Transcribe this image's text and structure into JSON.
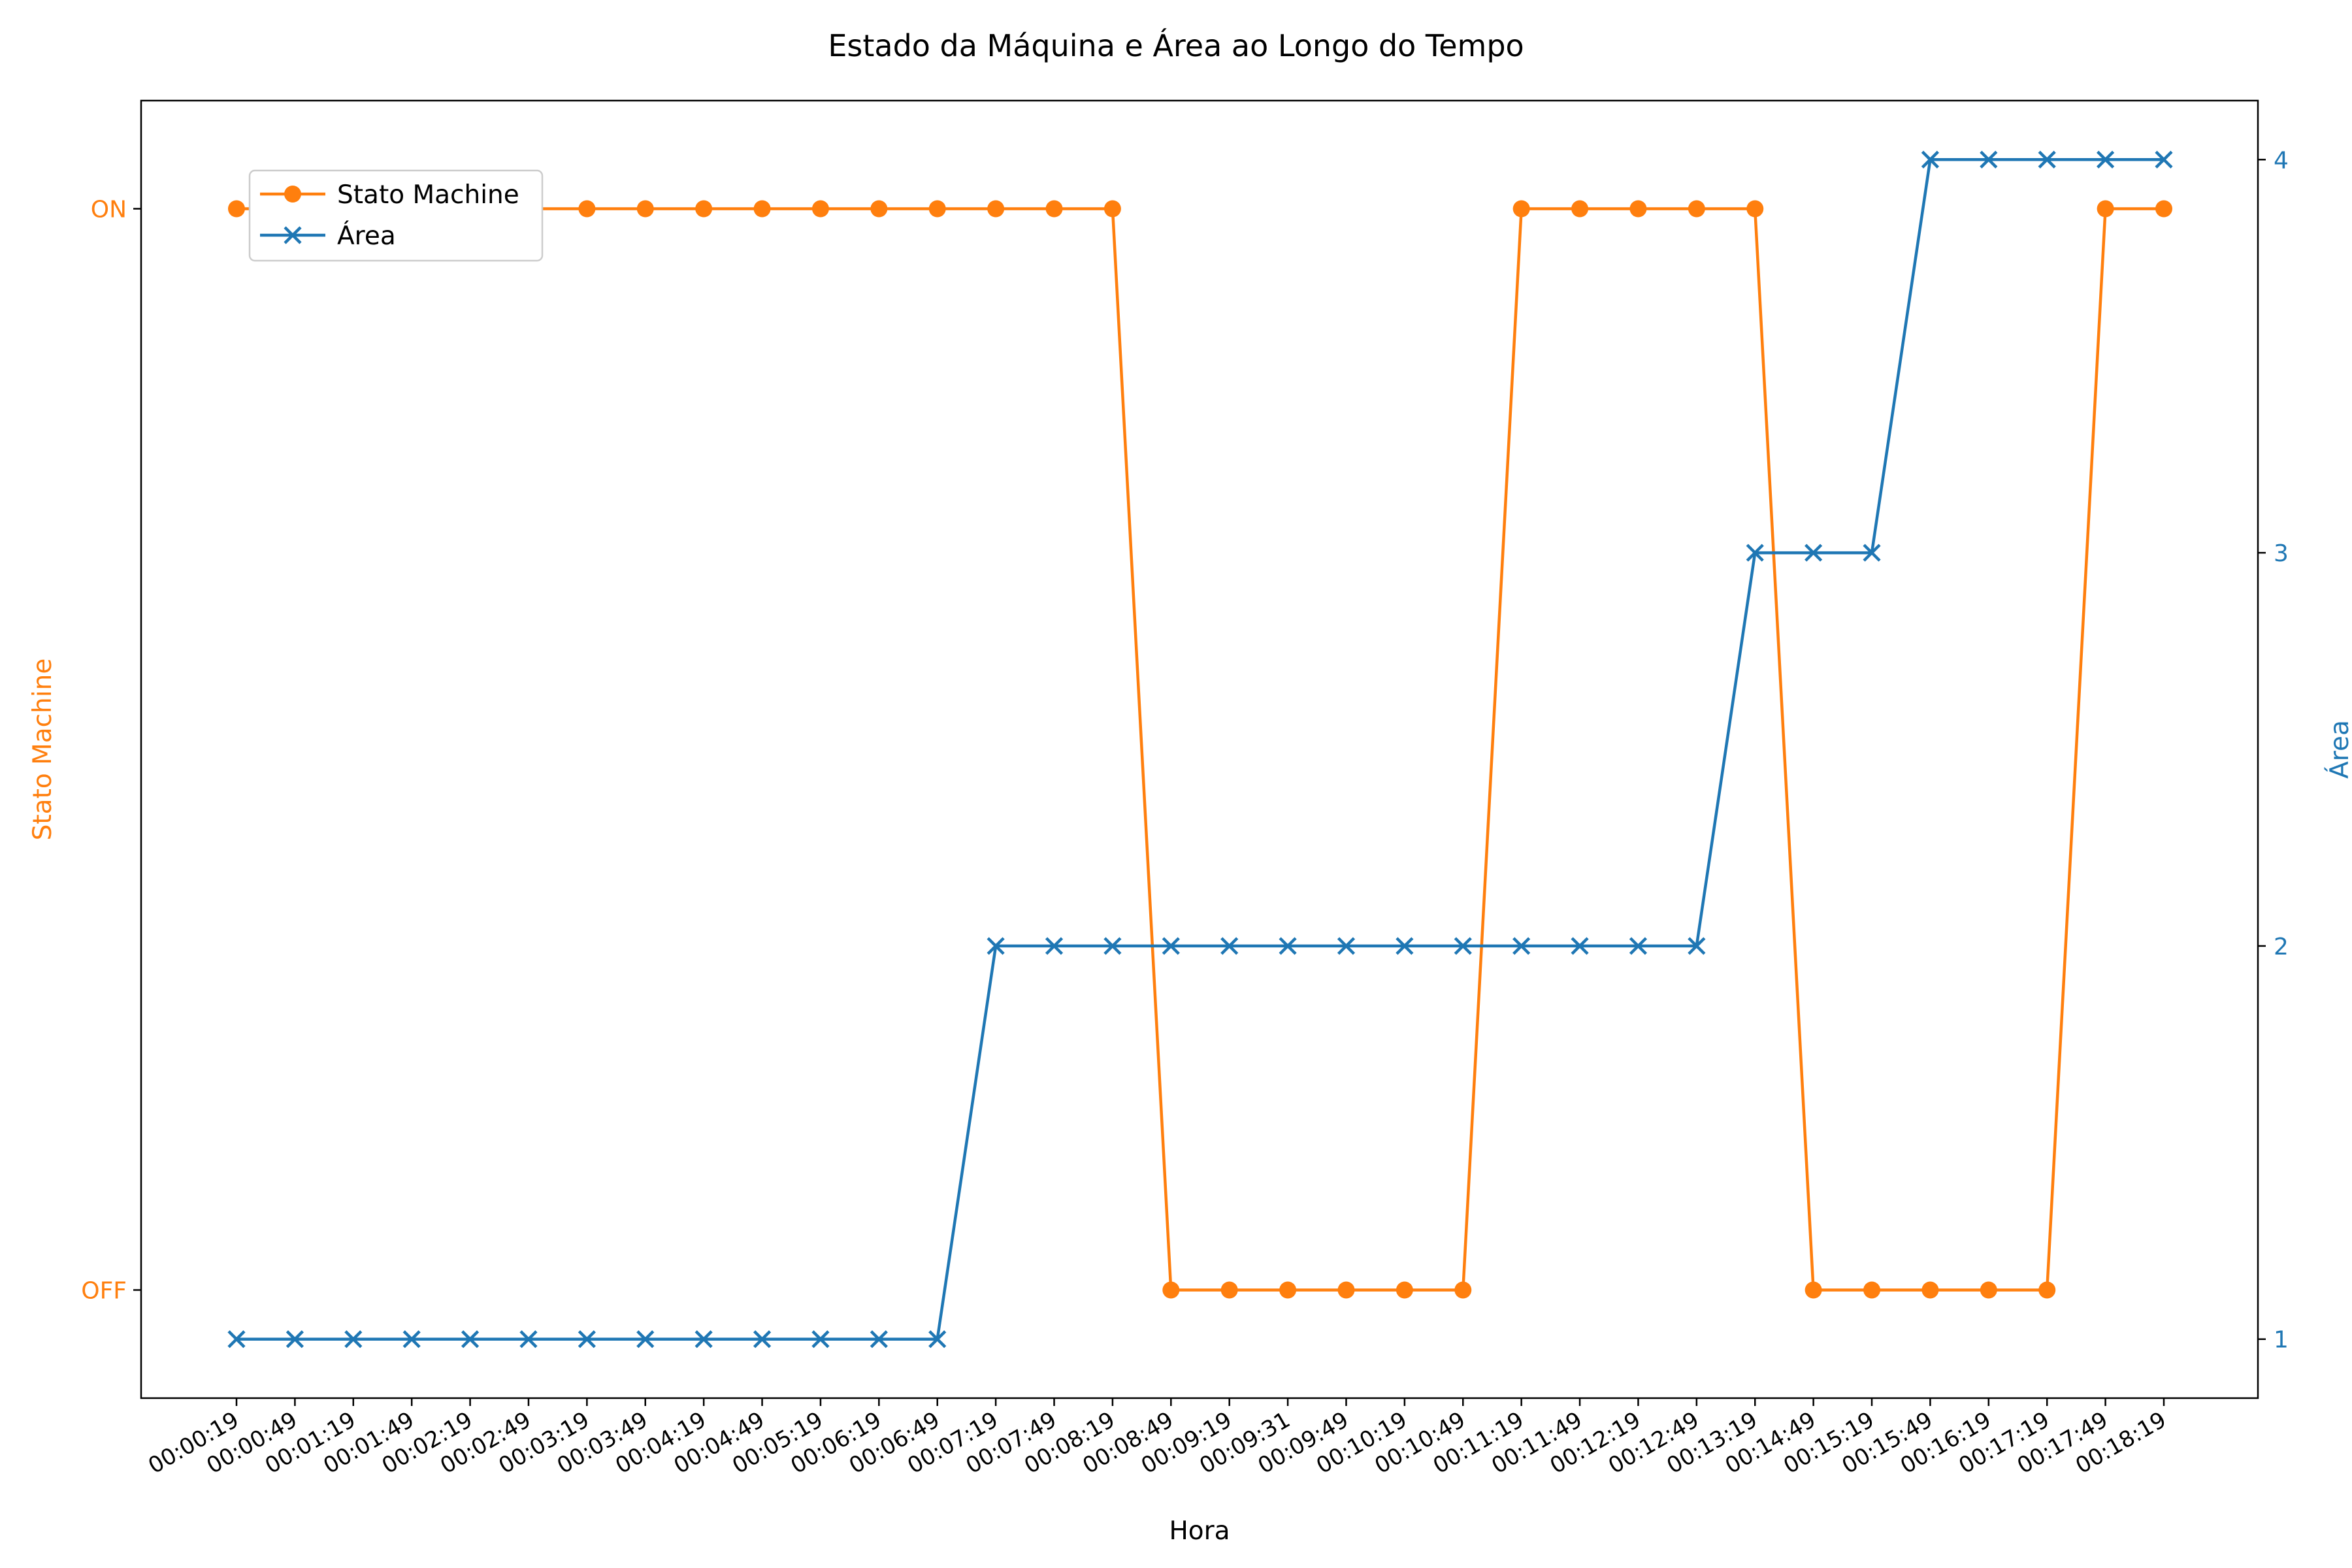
{
  "chart_data": {
    "type": "line",
    "title": "Estado da Máquina e Área ao Longo do Tempo",
    "xlabel": "Hora",
    "ylabel_left": "Stato Machine",
    "ylabel_right": "Área",
    "categories": [
      "00:00:19",
      "00:00:49",
      "00:01:19",
      "00:01:49",
      "00:02:19",
      "00:02:49",
      "00:03:19",
      "00:03:49",
      "00:04:19",
      "00:04:49",
      "00:05:19",
      "00:06:19",
      "00:06:49",
      "00:07:19",
      "00:07:49",
      "00:08:19",
      "00:08:49",
      "00:09:19",
      "00:09:31",
      "00:09:49",
      "00:10:19",
      "00:10:49",
      "00:11:19",
      "00:11:49",
      "00:12:19",
      "00:12:49",
      "00:13:19",
      "00:14:49",
      "00:15:19",
      "00:15:49",
      "00:16:19",
      "00:17:19",
      "00:17:49",
      "00:18:19"
    ],
    "left_axis": {
      "tick_labels": [
        "OFF",
        "ON"
      ],
      "tick_values": [
        0,
        1
      ],
      "ylim": [
        -0.1,
        1.1
      ],
      "color": "#ff7f0e"
    },
    "right_axis": {
      "tick_labels": [
        "1",
        "2",
        "3",
        "4"
      ],
      "tick_values": [
        1,
        2,
        3,
        4
      ],
      "ylim": [
        0.85,
        4.15
      ],
      "color": "#1f77b4"
    },
    "series": [
      {
        "name": "Stato Machine",
        "axis": "left",
        "color": "#ff7f0e",
        "marker": "circle",
        "values": [
          1,
          1,
          1,
          1,
          1,
          1,
          1,
          1,
          1,
          1,
          1,
          1,
          1,
          1,
          1,
          1,
          0,
          0,
          0,
          0,
          0,
          0,
          1,
          1,
          1,
          1,
          1,
          0,
          0,
          0,
          0,
          0,
          1,
          1
        ]
      },
      {
        "name": "Área",
        "axis": "right",
        "color": "#1f77b4",
        "marker": "x",
        "values": [
          1,
          1,
          1,
          1,
          1,
          1,
          1,
          1,
          1,
          1,
          1,
          1,
          1,
          2,
          2,
          2,
          2,
          2,
          2,
          2,
          2,
          2,
          2,
          2,
          2,
          2,
          3,
          3,
          3,
          4,
          4,
          4,
          4,
          4
        ]
      }
    ],
    "legend": {
      "placement": "upper-left",
      "entries": [
        "Stato Machine",
        "Área"
      ]
    },
    "grid": false
  }
}
